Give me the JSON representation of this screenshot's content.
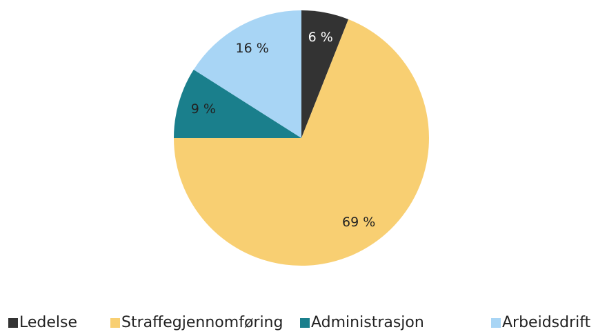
{
  "chart_data": {
    "type": "pie",
    "categories": [
      "Ledelse",
      "Straffegjennomføring",
      "Administrasjon",
      "Arbeidsdrift"
    ],
    "values": [
      6,
      69,
      9,
      16
    ],
    "value_labels": [
      "6 %",
      "69 %",
      "9 %",
      "16 %"
    ],
    "colors": [
      "#333333",
      "#f8cf72",
      "#1a7f8c",
      "#a8d5f5"
    ],
    "legend": "bottom"
  }
}
